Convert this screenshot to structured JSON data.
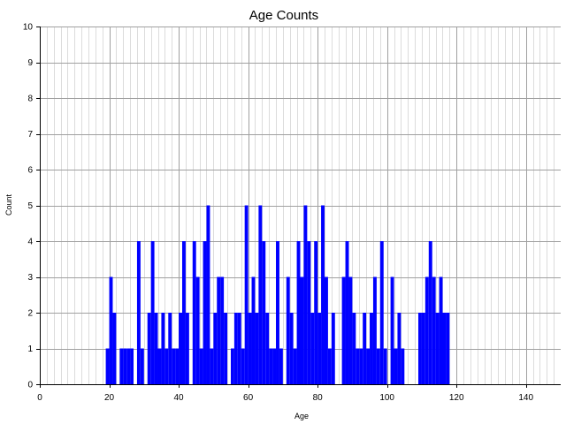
{
  "chart_data": {
    "type": "bar",
    "title": "Age Counts",
    "xlabel": "Age",
    "ylabel": "Count",
    "xlim": [
      0,
      150
    ],
    "ylim": [
      0,
      10
    ],
    "x_ticks": [
      0,
      20,
      40,
      60,
      80,
      100,
      120,
      140
    ],
    "y_ticks": [
      0,
      1,
      2,
      3,
      4,
      5,
      6,
      7,
      8,
      9,
      10
    ],
    "grid": true,
    "bar_color": "#0000ff",
    "x": [
      19,
      20,
      21,
      22,
      23,
      24,
      25,
      26,
      27,
      28,
      29,
      30,
      31,
      32,
      33,
      34,
      35,
      36,
      37,
      38,
      39,
      40,
      41,
      42,
      43,
      44,
      45,
      46,
      47,
      48,
      49,
      50,
      51,
      52,
      53,
      54,
      55,
      56,
      57,
      58,
      59,
      60,
      61,
      62,
      63,
      64,
      65,
      66,
      67,
      68,
      69,
      70,
      71,
      72,
      73,
      74,
      75,
      76,
      77,
      78,
      79,
      80,
      81,
      82,
      83,
      84,
      85,
      86,
      87,
      88,
      89,
      90,
      91,
      92,
      93,
      94,
      95,
      96,
      97,
      98,
      99,
      100,
      101,
      102,
      103,
      104,
      105,
      106,
      107,
      108,
      109,
      110,
      111,
      112,
      113,
      114,
      115,
      116,
      117
    ],
    "values": [
      1,
      3,
      2,
      0,
      1,
      1,
      1,
      1,
      0,
      4,
      1,
      0,
      2,
      4,
      2,
      1,
      2,
      1,
      2,
      1,
      1,
      2,
      4,
      2,
      0,
      4,
      3,
      1,
      4,
      5,
      1,
      2,
      3,
      3,
      2,
      0,
      1,
      2,
      2,
      1,
      5,
      2,
      3,
      2,
      5,
      4,
      2,
      1,
      1,
      4,
      1,
      0,
      3,
      2,
      1,
      4,
      3,
      5,
      4,
      2,
      4,
      2,
      5,
      3,
      1,
      2,
      0,
      0,
      3,
      4,
      3,
      2,
      1,
      1,
      2,
      1,
      2,
      3,
      1,
      4,
      1,
      0,
      3,
      1,
      2,
      1,
      0,
      0,
      0,
      0,
      2,
      2,
      3,
      4,
      3,
      2,
      3,
      2,
      2
    ]
  }
}
